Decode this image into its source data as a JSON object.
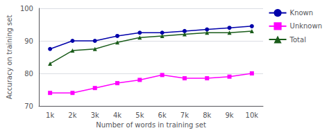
{
  "chart_data": {
    "type": "line",
    "xlabel": "Number of words in training set",
    "ylabel": "Accuracy on training set",
    "categories": [
      "1k",
      "2k",
      "3k",
      "4k",
      "5k",
      "6k",
      "7k",
      "8k",
      "9k",
      "10k"
    ],
    "series": [
      {
        "name": "Known",
        "color": "#0000AA",
        "marker": "circle",
        "values": [
          87.5,
          90.0,
          90.0,
          91.5,
          92.5,
          92.5,
          93.0,
          93.5,
          94.0,
          94.5
        ]
      },
      {
        "name": "Unknown",
        "color": "#FF00FF",
        "marker": "square",
        "values": [
          74.0,
          74.0,
          75.5,
          77.0,
          78.0,
          79.5,
          78.5,
          78.5,
          79.0,
          80.0
        ]
      },
      {
        "name": "Total",
        "color": "#1A5C1A",
        "marker": "triangle",
        "values": [
          83.0,
          87.0,
          87.5,
          89.5,
          91.0,
          91.5,
          92.0,
          92.5,
          92.5,
          93.0
        ]
      }
    ],
    "ylim": [
      70,
      100
    ],
    "yticks": [
      70,
      80,
      90,
      100
    ],
    "grid": true,
    "legend": "right"
  }
}
